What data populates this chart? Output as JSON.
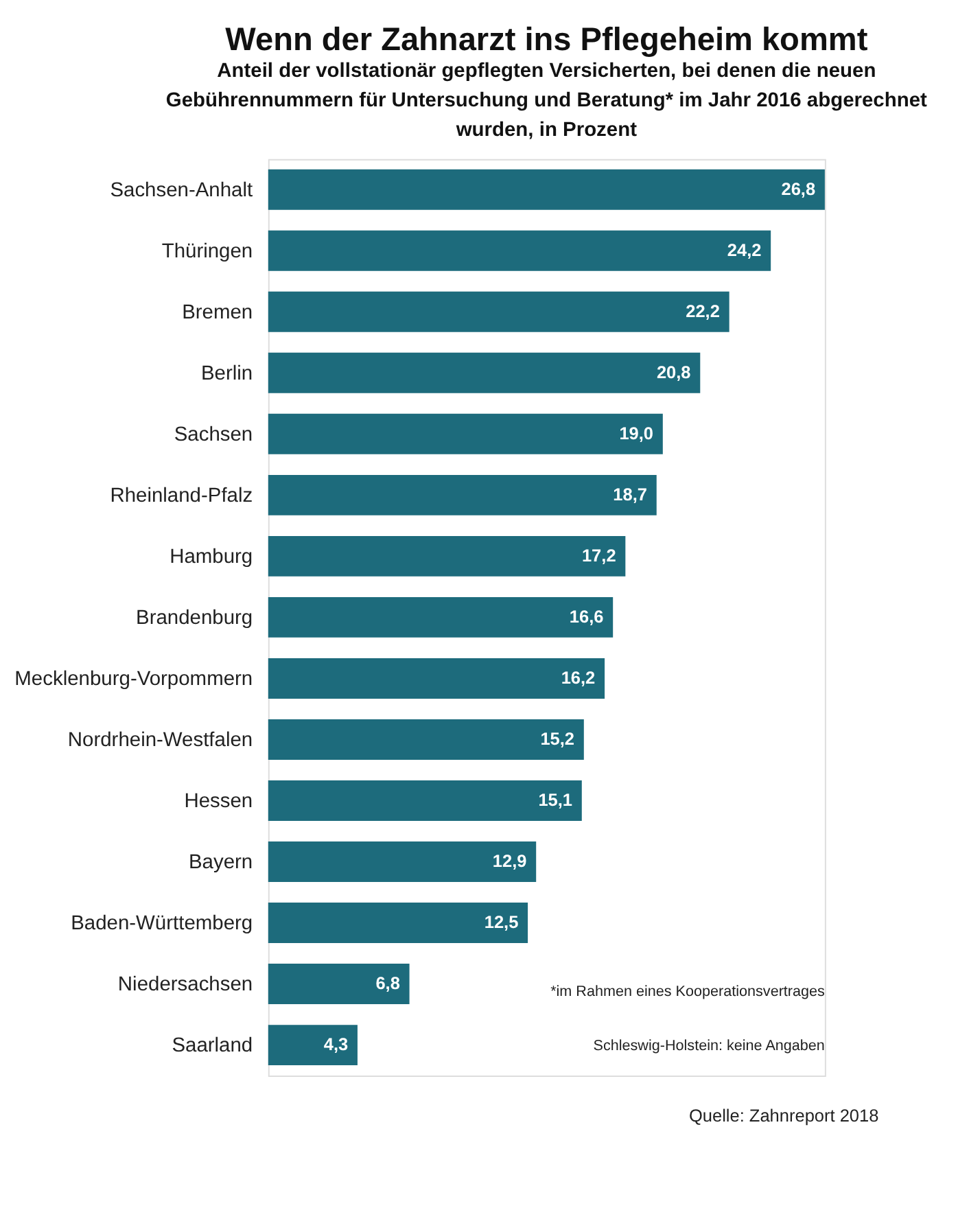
{
  "chart_data": {
    "type": "bar",
    "orientation": "horizontal",
    "title": "Wenn der Zahnarzt ins Pflegeheim kommt",
    "subtitle": "Anteil der vollstationär gepflegten Versicherten, bei denen die neuen Gebührennummern für Untersuchung und Beratung* im Jahr 2016 abgerechnet wurden, in Prozent",
    "categories": [
      "Sachsen-Anhalt",
      "Thüringen",
      "Bremen",
      "Berlin",
      "Sachsen",
      "Rheinland-Pfalz",
      "Hamburg",
      "Brandenburg",
      "Mecklenburg-Vorpommern",
      "Nordrhein-Westfalen",
      "Hessen",
      "Bayern",
      "Baden-Württemberg",
      "Niedersachsen",
      "Saarland"
    ],
    "values": [
      26.8,
      24.2,
      22.2,
      20.8,
      19.0,
      18.7,
      17.2,
      16.6,
      16.2,
      15.2,
      15.1,
      12.9,
      12.5,
      6.8,
      4.3
    ],
    "value_labels": [
      "26,8",
      "24,2",
      "22,2",
      "20,8",
      "19,0",
      "18,7",
      "17,2",
      "16,6",
      "16,2",
      "15,2",
      "15,1",
      "12,9",
      "12,5",
      "6,8",
      "4,3"
    ],
    "color": "#1d6b7c",
    "annotations": [
      "*im Rahmen eines Kooperationsvertrages",
      "Schleswig-Holstein: keine Angaben",
      "Quelle: Zahnreport 2018"
    ],
    "grid": false
  }
}
